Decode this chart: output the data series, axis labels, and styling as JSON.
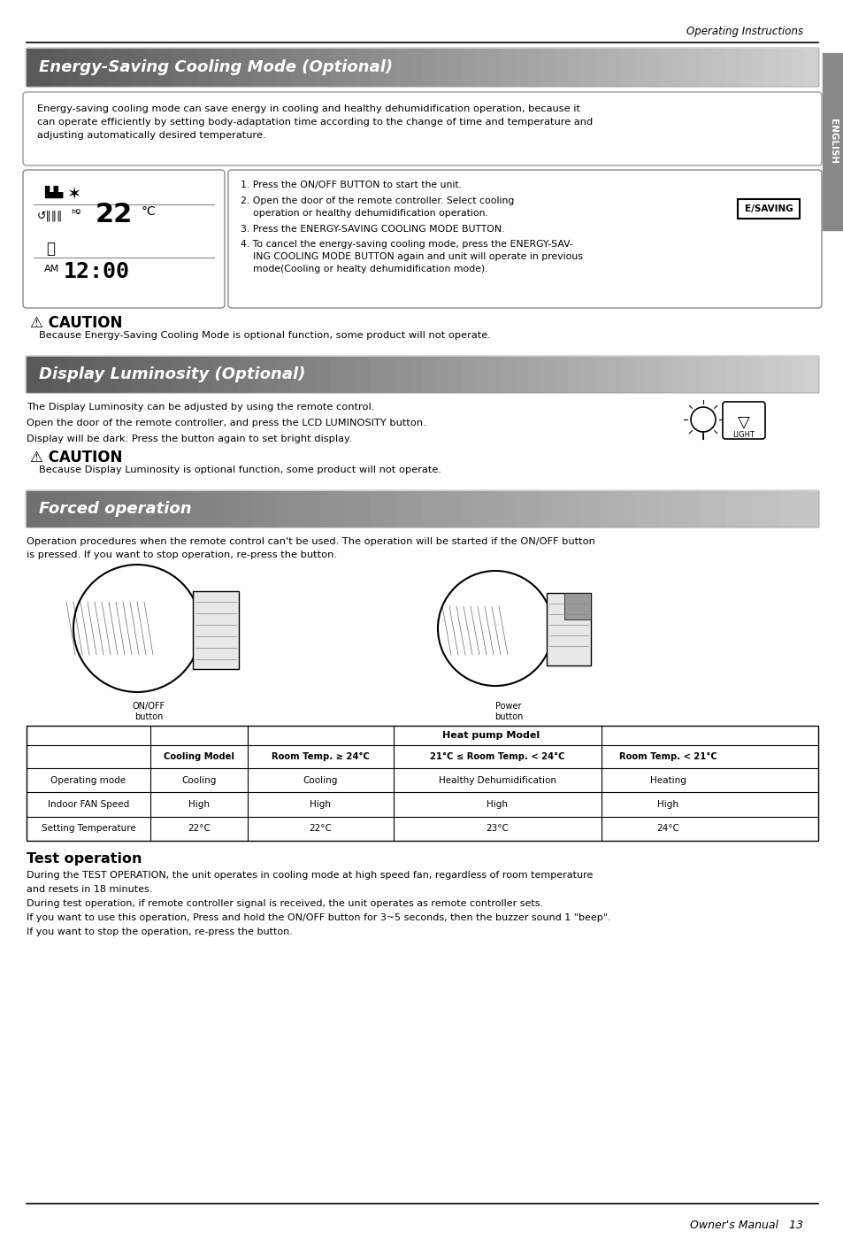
{
  "page_bg": "#ffffff",
  "header_text": "Operating Instructions",
  "footer_text": "Owner's Manual   13",
  "sidebar_text": "ENGLISH",
  "sidebar_color": "#888888",
  "section1_title": "Energy-Saving Cooling Mode (Optional)",
  "section1_desc": "Energy-saving cooling mode can save energy in cooling and healthy dehumidification operation, because it\ncan operate efficiently by setting body-adaptation time according to the change of time and temperature and\nadjusting automatically desired temperature.",
  "step1": "1. Press the ON/OFF BUTTON to start the unit.",
  "step2": "2. Open the door of the remote controller. Select cooling\n    operation or healthy dehumidification operation.",
  "step3": "3. Press the ENERGY-SAVING COOLING MODE BUTTON.",
  "step4": "4. To cancel the energy-saving cooling mode, press the ENERGY-SAV-\n    ING COOLING MODE BUTTON again and unit will operate in previous\n    mode(Cooling or healty dehumidification mode).",
  "caution1_text": "Because Energy-Saving Cooling Mode is optional function, some product will not operate.",
  "section2_title": "Display Luminosity (Optional)",
  "section2_line1": "The Display Luminosity can be adjusted by using the remote control.",
  "section2_line2": "Open the door of the remote controller, and press the LCD LUMINOSITY button.",
  "section2_line3": "Display will be dark. Press the button again to set bright display.",
  "caution2_text": "Because Display Luminosity is optional function, some product will not operate.",
  "section3_title": "Forced operation",
  "section3_desc": "Operation procedures when the remote control can't be used. The operation will be started if the ON/OFF button\nis pressed. If you want to stop operation, re-press the button.",
  "table_col_header1": "Cooling Model",
  "table_heat_pump": "Heat pump Model",
  "table_col2": "Room Temp. ≥ 24°C",
  "table_col3": "21°C ≤ Room Temp. < 24°C",
  "table_col4": "Room Temp. < 21°C",
  "table_rows": [
    [
      "Operating mode",
      "Cooling",
      "Cooling",
      "Healthy Dehumidification",
      "Heating"
    ],
    [
      "Indoor FAN Speed",
      "High",
      "High",
      "High",
      "High"
    ],
    [
      "Setting Temperature",
      "22°C",
      "22°C",
      "23°C",
      "24°C"
    ]
  ],
  "test_title": "Test operation",
  "test_line1": "During the TEST OPERATION, the unit operates in cooling mode at high speed fan, regardless of room temperature",
  "test_line2": "and resets in 18 minutes.",
  "test_line3": "During test operation, if remote controller signal is received, the unit operates as remote controller sets.",
  "test_line4": "If you want to use this operation, Press and hold the ON/OFF button for 3~5 seconds, then the buzzer sound 1 \"beep\".",
  "test_line5": "If you want to stop the operation, re-press the button."
}
